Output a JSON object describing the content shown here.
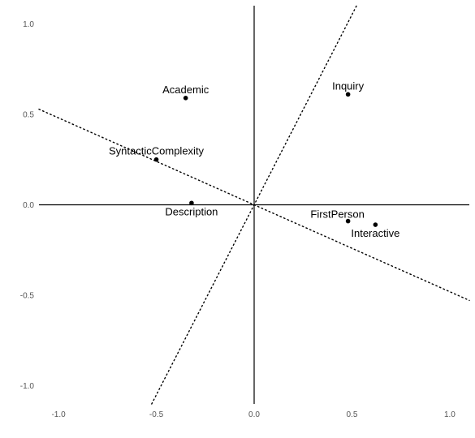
{
  "chart_data": {
    "type": "scatter",
    "title": "",
    "xlabel": "",
    "ylabel": "",
    "xlim": [
      -1.1,
      1.1
    ],
    "ylim": [
      -1.1,
      1.1
    ],
    "grid": false,
    "x_ticks": [
      {
        "value": -1.0,
        "label": "-1.0"
      },
      {
        "value": -0.5,
        "label": "-0.5"
      },
      {
        "value": 0.0,
        "label": "0.0"
      },
      {
        "value": 0.5,
        "label": "0.5"
      },
      {
        "value": 1.0,
        "label": "1.0"
      }
    ],
    "y_ticks": [
      {
        "value": 1.0,
        "label": "1.0"
      },
      {
        "value": 0.5,
        "label": "0.5"
      },
      {
        "value": 0.0,
        "label": "0.0"
      },
      {
        "value": -0.5,
        "label": "-0.5"
      },
      {
        "value": -1.0,
        "label": "-1.0"
      }
    ],
    "axis_lines": [
      {
        "orientation": "horizontal",
        "value": 0
      },
      {
        "orientation": "vertical",
        "value": 0
      }
    ],
    "dotted_lines": [
      {
        "slope": -0.48
      },
      {
        "slope": 2.1
      }
    ],
    "points": [
      {
        "label": "Academic",
        "x": -0.35,
        "y": 0.59,
        "label_pos": "above"
      },
      {
        "label": "Inquiry",
        "x": 0.48,
        "y": 0.61,
        "label_pos": "above"
      },
      {
        "label": "SyntacticComplexity",
        "x": -0.5,
        "y": 0.25,
        "label_pos": "above"
      },
      {
        "label": "Description",
        "x": -0.32,
        "y": 0.01,
        "label_pos": "below"
      },
      {
        "label": "FirstPerson",
        "x": 0.48,
        "y": -0.09,
        "label_pos": "above-left"
      },
      {
        "label": "Interactive",
        "x": 0.62,
        "y": -0.11,
        "label_pos": "below"
      }
    ]
  }
}
